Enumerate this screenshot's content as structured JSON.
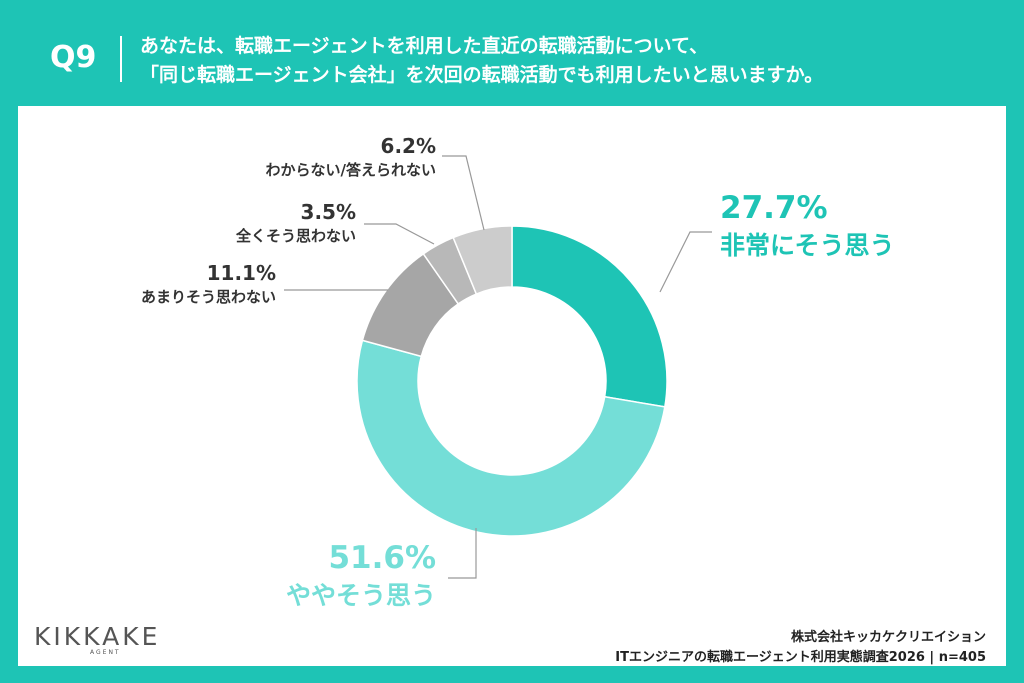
{
  "header": {
    "qnum": "Q9",
    "question_line1": "あなたは、転職エージェントを利用した直近の転職活動について、",
    "question_line2": "「同じ転職エージェント会社」を次回の転職活動でも利用したいと思いますか。"
  },
  "colors": {
    "background": "#1ec4b5",
    "slice1": "#1ec4b5",
    "slice2": "#74ded7",
    "slice3": "#a6a6a6",
    "slice4": "#b8b8b8",
    "slice5": "#cccccc"
  },
  "chart_data": {
    "type": "pie",
    "donut": true,
    "slices": [
      {
        "label": "非常にそう思う",
        "value": 27.7,
        "value_label": "27.7%"
      },
      {
        "label": "ややそう思う",
        "value": 51.6,
        "value_label": "51.6%"
      },
      {
        "label": "あまりそう思わない",
        "value": 11.1,
        "value_label": "11.1%"
      },
      {
        "label": "全くそう思わない",
        "value": 3.5,
        "value_label": "3.5%"
      },
      {
        "label": "わからない/答えられない",
        "value": 6.2,
        "value_label": "6.2%"
      }
    ]
  },
  "logo": {
    "main": "KIKKAKE",
    "sub": "AGENT"
  },
  "source": {
    "line1": "株式会社キッカケクリエイション",
    "line2": "ITエンジニアの転職エージェント利用実態調査2026 | n=405"
  }
}
